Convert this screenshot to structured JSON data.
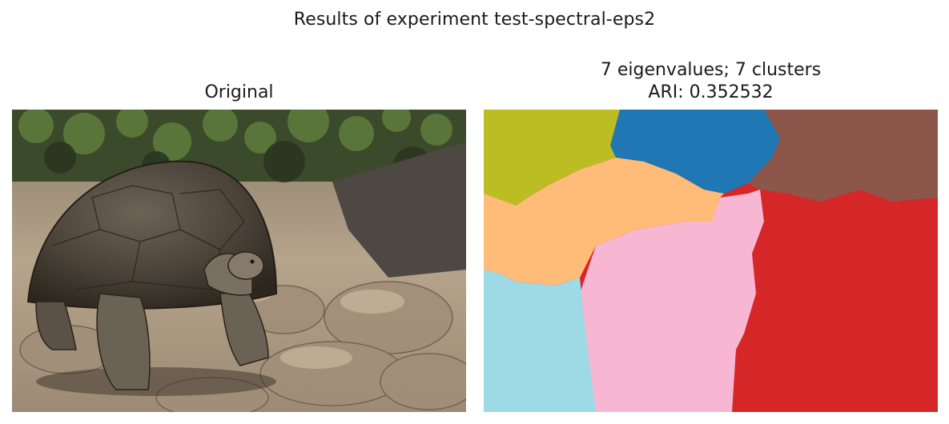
{
  "figure": {
    "suptitle": "Results of experiment test-spectral-eps2"
  },
  "left_panel": {
    "title": "Original",
    "image_description_icon": "tortoise-photo"
  },
  "right_panel": {
    "title_line1": "7 eigenvalues; 7 clusters",
    "title_line2": "ARI: 0.352532",
    "cluster_colors": [
      "#bcbd22",
      "#1f77b4",
      "#8c564b",
      "#ffbb78",
      "#f7b6d2",
      "#d62728",
      "#9edae5"
    ]
  }
}
